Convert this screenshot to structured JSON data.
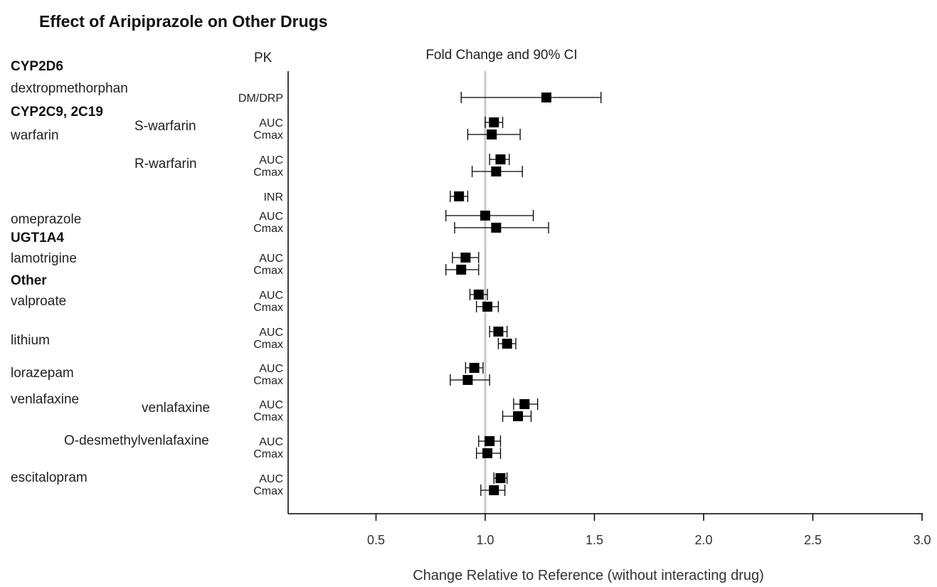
{
  "title": "Effect of Aripiprazole on Other Drugs",
  "colors": {
    "reference_line": "#c8c8c8",
    "axis": "#000000",
    "marker": "#000000"
  },
  "chart_data": {
    "type": "forest",
    "title": "Effect of Aripiprazole on Other Drugs",
    "column_header_pk": "PK",
    "column_header_ci": "Fold Change and 90% CI",
    "xlabel": "Change Relative to Reference (without interacting drug)",
    "xlim": [
      0.1,
      3.0
    ],
    "xticks": [
      "0.5",
      "1.0",
      "1.5",
      "2.0",
      "2.5",
      "3.0"
    ],
    "reference_line": 1.0,
    "grid": false,
    "left_labels": [
      {
        "text": "CYP2D6",
        "bold": true
      },
      {
        "text": "dextropmethorphan",
        "bold": false
      },
      {
        "text": "CYP2C9, 2C19",
        "bold": true
      },
      {
        "text": "warfarin",
        "bold": false
      },
      {
        "text": "omeprazole",
        "bold": false
      },
      {
        "text": "UGT1A4",
        "bold": true
      },
      {
        "text": "lamotrigine",
        "bold": false
      },
      {
        "text": "Other",
        "bold": true
      },
      {
        "text": "valproate",
        "bold": false
      },
      {
        "text": "lithium",
        "bold": false
      },
      {
        "text": "lorazepam",
        "bold": false
      },
      {
        "text": "venlafaxine",
        "bold": false
      },
      {
        "text": "escitalopram",
        "bold": false
      }
    ],
    "sub_labels": [
      "S-warfarin",
      "R-warfarin",
      "venlafaxine",
      "O-desmethylvenlafaxine"
    ],
    "rows": [
      {
        "pk": "DM/DRP",
        "estimate": 1.28,
        "lower": 0.89,
        "upper": 1.53
      },
      {
        "pk": "AUC",
        "estimate": 1.04,
        "lower": 1.0,
        "upper": 1.08
      },
      {
        "pk": "Cmax",
        "estimate": 1.03,
        "lower": 0.92,
        "upper": 1.16
      },
      {
        "pk": "AUC",
        "estimate": 1.07,
        "lower": 1.02,
        "upper": 1.11
      },
      {
        "pk": "Cmax",
        "estimate": 1.05,
        "lower": 0.94,
        "upper": 1.17
      },
      {
        "pk": "INR",
        "estimate": 0.88,
        "lower": 0.84,
        "upper": 0.92
      },
      {
        "pk": "AUC",
        "estimate": 1.0,
        "lower": 0.82,
        "upper": 1.22
      },
      {
        "pk": "Cmax",
        "estimate": 1.05,
        "lower": 0.86,
        "upper": 1.29
      },
      {
        "pk": "AUC",
        "estimate": 0.91,
        "lower": 0.85,
        "upper": 0.97
      },
      {
        "pk": "Cmax",
        "estimate": 0.89,
        "lower": 0.82,
        "upper": 0.97
      },
      {
        "pk": "AUC",
        "estimate": 0.97,
        "lower": 0.93,
        "upper": 1.01
      },
      {
        "pk": "Cmax",
        "estimate": 1.01,
        "lower": 0.96,
        "upper": 1.06
      },
      {
        "pk": "AUC",
        "estimate": 1.06,
        "lower": 1.02,
        "upper": 1.1
      },
      {
        "pk": "Cmax",
        "estimate": 1.1,
        "lower": 1.06,
        "upper": 1.14
      },
      {
        "pk": "AUC",
        "estimate": 0.95,
        "lower": 0.91,
        "upper": 0.99
      },
      {
        "pk": "Cmax",
        "estimate": 0.92,
        "lower": 0.84,
        "upper": 1.02
      },
      {
        "pk": "AUC",
        "estimate": 1.18,
        "lower": 1.13,
        "upper": 1.24
      },
      {
        "pk": "Cmax",
        "estimate": 1.15,
        "lower": 1.08,
        "upper": 1.21
      },
      {
        "pk": "AUC",
        "estimate": 1.02,
        "lower": 0.97,
        "upper": 1.07
      },
      {
        "pk": "Cmax",
        "estimate": 1.01,
        "lower": 0.96,
        "upper": 1.07
      },
      {
        "pk": "AUC",
        "estimate": 1.07,
        "lower": 1.04,
        "upper": 1.1
      },
      {
        "pk": "Cmax",
        "estimate": 1.04,
        "lower": 0.98,
        "upper": 1.09
      }
    ]
  }
}
